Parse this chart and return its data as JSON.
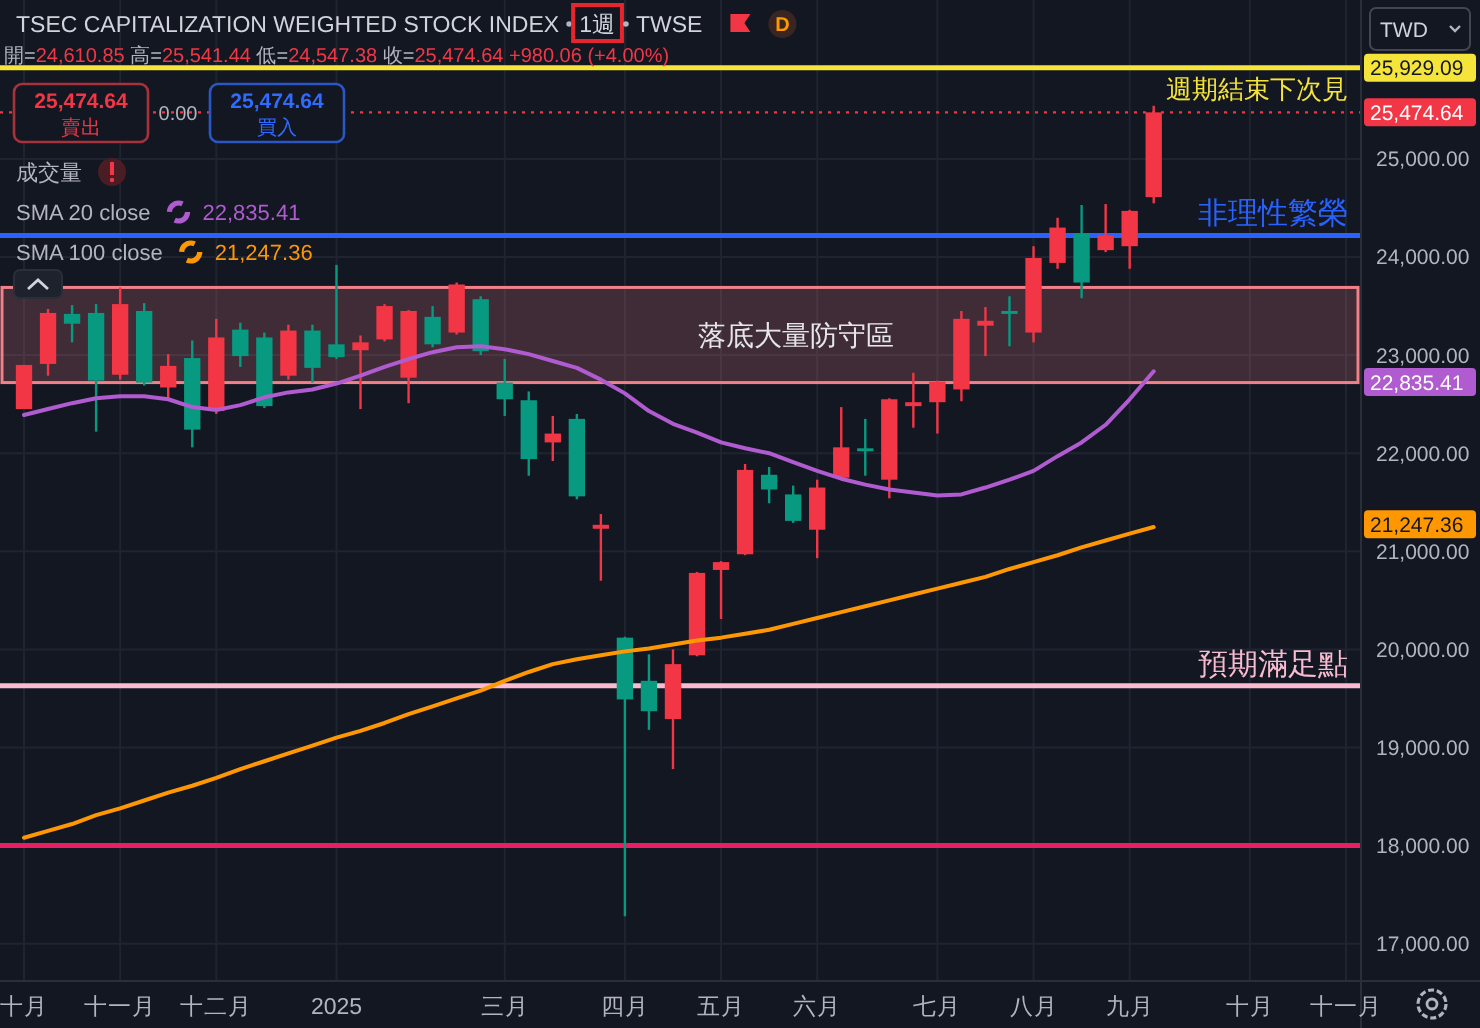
{
  "chart_data": {
    "type": "candlestick",
    "title": "TSEC CAPITALIZATION WEIGHTED STOCK INDEX",
    "subtitle": "開=24,610.85 高=25,541.44 低=24,547.38 收=25,474.64 +980.06 (+4.00%)",
    "categories": [
      "十月",
      null,
      null,
      null,
      "十一月",
      null,
      null,
      null,
      "十二月",
      null,
      null,
      null,
      null,
      "2025",
      null,
      null,
      null,
      null,
      null,
      null,
      "三月",
      null,
      null,
      null,
      null,
      "四月",
      null,
      null,
      null,
      "五月",
      null,
      null,
      null,
      "六月",
      null,
      null,
      null,
      null,
      "七月",
      null,
      null,
      null,
      "八月",
      null,
      null,
      null,
      "九月",
      null,
      null,
      null,
      null,
      "十月",
      null,
      null,
      null,
      "十一月"
    ],
    "ohlc": [
      [
        22450,
        22900,
        22450,
        22900
      ],
      [
        22910,
        23470,
        22790,
        23430
      ],
      [
        23420,
        23510,
        23130,
        23320
      ],
      [
        23430,
        23520,
        22220,
        22740
      ],
      [
        22800,
        23690,
        22750,
        23520
      ],
      [
        23450,
        23530,
        22690,
        22720
      ],
      [
        22670,
        23010,
        22550,
        22890
      ],
      [
        22970,
        23150,
        22060,
        22240
      ],
      [
        22430,
        23370,
        22400,
        23180
      ],
      [
        23260,
        23330,
        22880,
        22990
      ],
      [
        23180,
        23230,
        22460,
        22480
      ],
      [
        22790,
        23310,
        22750,
        23250
      ],
      [
        23250,
        23310,
        22720,
        22870
      ],
      [
        23110,
        23920,
        22960,
        22980
      ],
      [
        23050,
        23200,
        22450,
        23130
      ],
      [
        23160,
        23520,
        23140,
        23500
      ],
      [
        22770,
        23460,
        22510,
        23450
      ],
      [
        23390,
        23500,
        23080,
        23110
      ],
      [
        23230,
        23740,
        23210,
        23720
      ],
      [
        23570,
        23600,
        23000,
        23040
      ],
      [
        22720,
        22960,
        22380,
        22550
      ],
      [
        22540,
        22630,
        21770,
        21940
      ],
      [
        22110,
        22380,
        21920,
        22200
      ],
      [
        22350,
        22400,
        21530,
        21560
      ],
      [
        21230,
        21380,
        20700,
        21270
      ],
      [
        20120,
        20130,
        17280,
        19490
      ],
      [
        19680,
        19950,
        19180,
        19370
      ],
      [
        19290,
        20000,
        18780,
        19850
      ],
      [
        19940,
        20790,
        19930,
        20780
      ],
      [
        20810,
        20900,
        20310,
        20890
      ],
      [
        20970,
        21890,
        20960,
        21830
      ],
      [
        21780,
        21860,
        21490,
        21630
      ],
      [
        21580,
        21670,
        21290,
        21310
      ],
      [
        21220,
        21730,
        20930,
        21650
      ],
      [
        21750,
        22470,
        21740,
        22060
      ],
      [
        22050,
        22350,
        21770,
        22020
      ],
      [
        21730,
        22560,
        21540,
        22550
      ],
      [
        22480,
        22820,
        22260,
        22520
      ],
      [
        22520,
        22740,
        22200,
        22730
      ],
      [
        22650,
        23450,
        22530,
        23370
      ],
      [
        23300,
        23490,
        22990,
        23350
      ],
      [
        23450,
        23600,
        23090,
        23420
      ],
      [
        23230,
        24110,
        23130,
        23990
      ],
      [
        23940,
        24400,
        23880,
        24300
      ],
      [
        24240,
        24530,
        23580,
        23740
      ],
      [
        24070,
        24540,
        24050,
        24220
      ],
      [
        24110,
        24480,
        23880,
        24470
      ],
      [
        24610.85,
        25541.44,
        24547.38,
        25474.64
      ],
      null,
      null,
      null,
      null,
      null,
      null,
      null,
      null
    ],
    "colors": [
      "#f23645",
      "#f23645",
      "#089981",
      "#089981",
      "#f23645",
      "#089981",
      "#f23645",
      "#089981",
      "#f23645",
      "#089981",
      "#089981",
      "#f23645",
      "#089981",
      "#089981",
      "#f23645",
      "#f23645",
      "#f23645",
      "#089981",
      "#f23645",
      "#089981",
      "#089981",
      "#089981",
      "#f23645",
      "#089981",
      "#f23645",
      "#089981",
      "#089981",
      "#f23645",
      "#f23645",
      "#f23645",
      "#f23645",
      "#089981",
      "#089981",
      "#f23645",
      "#f23645",
      "#089981",
      "#f23645",
      "#f23645",
      "#f23645",
      "#f23645",
      "#f23645",
      "#089981",
      "#f23645",
      "#f23645",
      "#089981",
      "#f23645",
      "#f23645",
      "#f23645",
      null,
      null,
      null,
      null,
      null,
      null,
      null,
      null
    ],
    "series": [
      {
        "name": "SMA 20 close",
        "type": "line",
        "color": "#b05bd0",
        "values": [
          22390,
          22450,
          22510,
          22560,
          22580,
          22580,
          22550,
          22470,
          22440,
          22490,
          22570,
          22620,
          22650,
          22710,
          22790,
          22880,
          22960,
          23030,
          23080,
          23090,
          23060,
          23010,
          22940,
          22870,
          22750,
          22610,
          22430,
          22300,
          22210,
          22110,
          22050,
          22000,
          21910,
          21820,
          21740,
          21680,
          21630,
          21600,
          21570,
          21580,
          21650,
          21730,
          21820,
          21970,
          22110,
          22290,
          22550,
          22835.41,
          null,
          null,
          null,
          null,
          null,
          null,
          null,
          null
        ]
      },
      {
        "name": "SMA 100 close",
        "type": "line",
        "color": "#ff9800",
        "values": [
          18080,
          18150,
          18220,
          18310,
          18380,
          18460,
          18540,
          18610,
          18690,
          18780,
          18860,
          18940,
          19020,
          19100,
          19170,
          19250,
          19340,
          19420,
          19500,
          19580,
          19680,
          19770,
          19850,
          19900,
          19940,
          19980,
          20010,
          20050,
          20090,
          20120,
          20160,
          20200,
          20260,
          20320,
          20380,
          20440,
          20500,
          20560,
          20620,
          20680,
          20740,
          20820,
          20890,
          20960,
          21040,
          21110,
          21180,
          21247.36,
          null,
          null,
          null,
          null,
          null,
          null,
          null,
          null
        ]
      }
    ],
    "ylim": [
      16630,
      26620
    ],
    "yticks": [
      {
        "value": 17000,
        "label": "17,000.00"
      },
      {
        "value": 18000,
        "label": "18,000.00"
      },
      {
        "value": 19000,
        "label": "19,000.00"
      },
      {
        "value": 20000,
        "label": "20,000.00"
      },
      {
        "value": 21000,
        "label": "21,000.00"
      },
      {
        "value": 22000,
        "label": "22,000.00"
      },
      {
        "value": 23000,
        "label": "23,000.00"
      },
      {
        "value": 24000,
        "label": "24,000.00"
      },
      {
        "value": 25000,
        "label": "25,000.00"
      }
    ],
    "grid": true,
    "legend": "top left",
    "ref_lines": [
      {
        "axis": "y",
        "value": 25929.09,
        "label": "週期結束下次見",
        "color": "#f5e43a"
      },
      {
        "axis": "y",
        "value": 25474.64,
        "color": "#f23645",
        "line_style": "dotted"
      },
      {
        "axis": "y",
        "value": 24220,
        "label": "非理性繁榮",
        "color": "#2962ff"
      },
      {
        "axis": "y",
        "value": 19630,
        "label": "預期滿足點",
        "color": "#f8bbd0"
      },
      {
        "axis": "y",
        "value": 18000,
        "color": "#e91e63"
      }
    ],
    "bands": [
      {
        "axis": "y",
        "from": 22720,
        "to": 23690,
        "label": "落底大量防守區",
        "color": "#f28089"
      }
    ],
    "annotations": [
      "1週",
      "TWSE",
      "D",
      "25,474.64",
      "賣出",
      "0.00",
      "25,474.64",
      "買入",
      "成交量",
      "TWD",
      "25,929.09",
      "25,474.64",
      "22,835.41",
      "21,247.36"
    ]
  }
}
